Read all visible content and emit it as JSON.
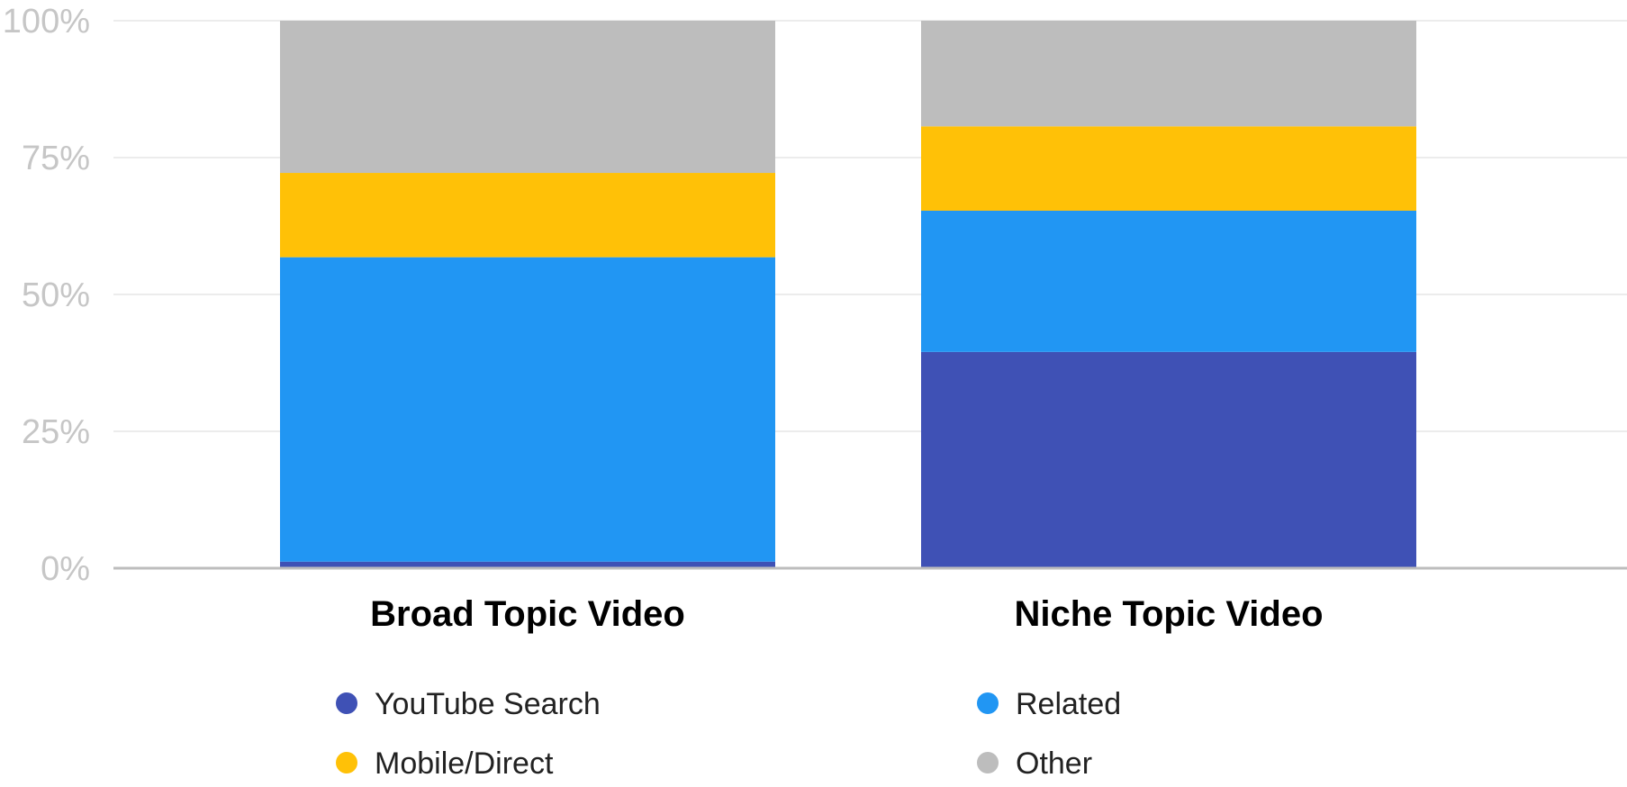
{
  "chart_data": {
    "type": "bar",
    "stacked": true,
    "percent": true,
    "categories": [
      "Broad Topic Video",
      "Niche Topic Video"
    ],
    "series": [
      {
        "name": "YouTube Search",
        "color": "#3f51b5",
        "values": [
          1.2,
          39.5
        ]
      },
      {
        "name": "Related",
        "color": "#2196f3",
        "values": [
          55.6,
          25.8
        ]
      },
      {
        "name": "Mobile/Direct",
        "color": "#ffc107",
        "values": [
          15.4,
          15.4
        ]
      },
      {
        "name": "Other",
        "color": "#bdbdbd",
        "values": [
          27.8,
          19.3
        ]
      }
    ],
    "ylim": [
      0,
      100
    ],
    "yticks": [
      0,
      25,
      50,
      75,
      100
    ],
    "ytick_labels": [
      "0%",
      "25%",
      "50%",
      "75%",
      "100%"
    ],
    "grid": true,
    "legend_position": "bottom",
    "legend_order": [
      "YouTube Search",
      "Related",
      "Mobile/Direct",
      "Other"
    ]
  }
}
